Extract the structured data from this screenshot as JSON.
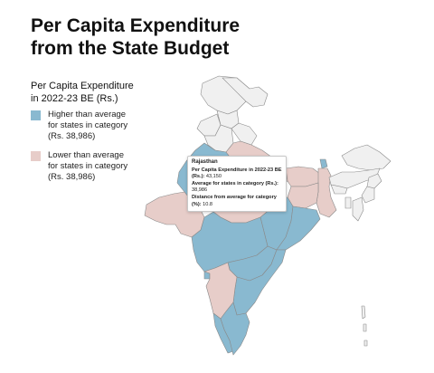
{
  "title_line1": "Per Capita Expenditure",
  "title_line2": "from the State Budget",
  "legend": {
    "heading_line1": "Per Capita Expenditure",
    "heading_line2": "in 2022-23 BE (Rs.)",
    "high_line1": "Higher than average",
    "high_line2": "for states in category",
    "high_line3": "(Rs. 38,986)",
    "low_line1": "Lower than average",
    "low_line2": "for states in category",
    "low_line3": "(Rs. 38,986)"
  },
  "colors": {
    "higher": "#89b9d0",
    "lower": "#e7cdc9",
    "no_data": "#f0f0f0",
    "border": "#8a8a8a"
  },
  "tooltip": {
    "state": "Rajasthan",
    "label1": "Per Capita Expenditure in 2022-23 BE (Rs.):",
    "value1": "43,150",
    "label2": "Average for states in category (Rs.):",
    "value2": "38,986",
    "label3": "Distance from average for category (%):",
    "value3": "10.8"
  }
}
